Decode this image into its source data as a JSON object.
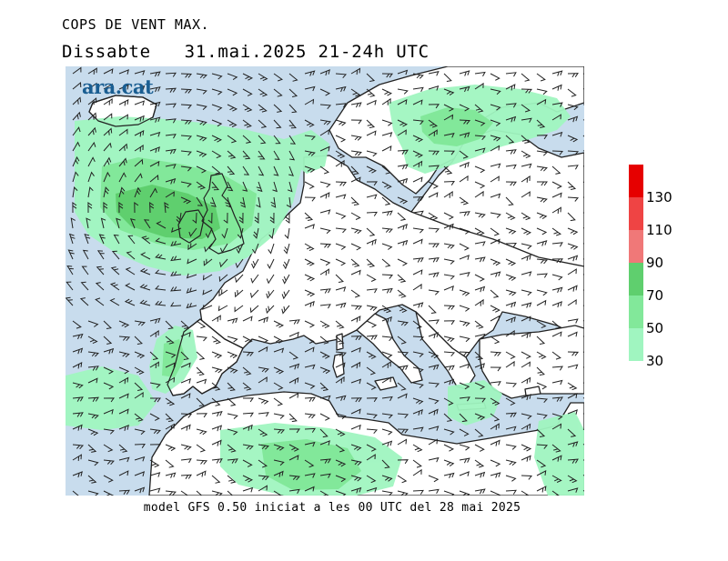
{
  "header": {
    "title": "COPS DE VENT MAX.",
    "day": "Dissabte",
    "date": "31.mai.2025",
    "hours": "21-24h UTC"
  },
  "map": {
    "logo": "ara.cat",
    "colors": {
      "sea": "#c8dced",
      "land": "#ffffff",
      "wind_30": "#a0f5c0",
      "wind_50": "#82e89a",
      "wind_70": "#5fcf6e",
      "wind_90": "#f07878",
      "wind_110": "#ef4444",
      "wind_130": "#e60000"
    }
  },
  "legend": {
    "colors": [
      "#a0f5c0",
      "#82e89a",
      "#5fcf6e",
      "#f07878",
      "#ef4444",
      "#e60000"
    ],
    "labels": [
      "30",
      "50",
      "70",
      "90",
      "110",
      "130"
    ]
  },
  "footer": {
    "text": "model GFS 0.50 iniciat a les 00 UTC del 28 mai 2025"
  }
}
